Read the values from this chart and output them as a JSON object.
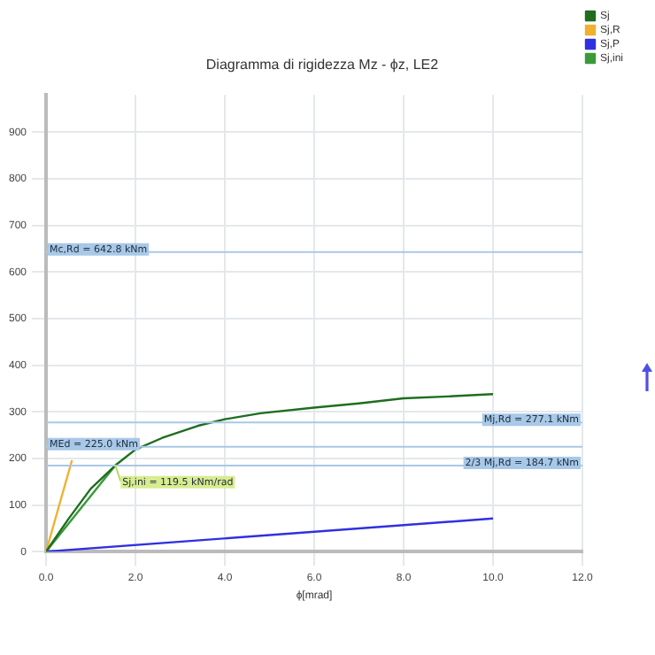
{
  "chart_data": {
    "type": "line",
    "title": "Diagramma di rigidezza Mz - ϕz, LE2",
    "xlabel": "ϕ[mrad]",
    "xlim": [
      0,
      12
    ],
    "xticks": [
      {
        "value": 0,
        "label": "0.0"
      },
      {
        "value": 2,
        "label": "2.0"
      },
      {
        "value": 4,
        "label": "4.0"
      },
      {
        "value": 6,
        "label": "6.0"
      },
      {
        "value": 8,
        "label": "8.0"
      },
      {
        "value": 10,
        "label": "10.0"
      },
      {
        "value": 12,
        "label": "12.0"
      }
    ],
    "ylim": [
      0,
      980
    ],
    "yticks": [
      0,
      100,
      200,
      300,
      400,
      500,
      600,
      700,
      800,
      900
    ],
    "series": [
      {
        "name": "Sj",
        "color": "#1e6e1e",
        "x": [
          0,
          0.5,
          1.0,
          1.55,
          2.0,
          2.6,
          3.4,
          4.0,
          4.8,
          6.0,
          7.0,
          8.0,
          9.0,
          10.0
        ],
        "values": [
          0,
          70,
          135,
          185,
          219,
          244,
          270,
          284,
          297,
          309,
          318,
          329,
          333,
          338
        ]
      },
      {
        "name": "Sj,R",
        "color": "#f0b030",
        "x": [
          0,
          0.58
        ],
        "values": [
          0,
          196
        ]
      },
      {
        "name": "Sj,P",
        "color": "#3030e0",
        "x": [
          0,
          10
        ],
        "values": [
          0,
          71
        ]
      },
      {
        "name": "Sj,ini",
        "color": "#3a9a3a",
        "x": [
          0,
          1.55
        ],
        "values": [
          0,
          185
        ]
      }
    ],
    "ref_lines": [
      {
        "axis": "y",
        "value": 642.8,
        "label": "Mc,Rd = 642.8 kNm",
        "color": "#a8c8e8"
      },
      {
        "axis": "y",
        "value": 277.1,
        "label": "Mj,Rd = 277.1 kNm",
        "color": "#a8c8e8"
      },
      {
        "axis": "y",
        "value": 225.0,
        "label": "MEd = 225.0 kNm",
        "color": "#a8c8e8"
      },
      {
        "axis": "y",
        "value": 184.7,
        "label": "2/3 Mj,Rd = 184.7 kNm",
        "color": "#a8c8e8"
      }
    ],
    "annotations": [
      {
        "text": "Sj,ini = 119.5 kNm/rad",
        "x": 1.55,
        "y": 185
      }
    ],
    "grid": true,
    "legend": "top right",
    "marker": "none",
    "line_style": "solid"
  }
}
